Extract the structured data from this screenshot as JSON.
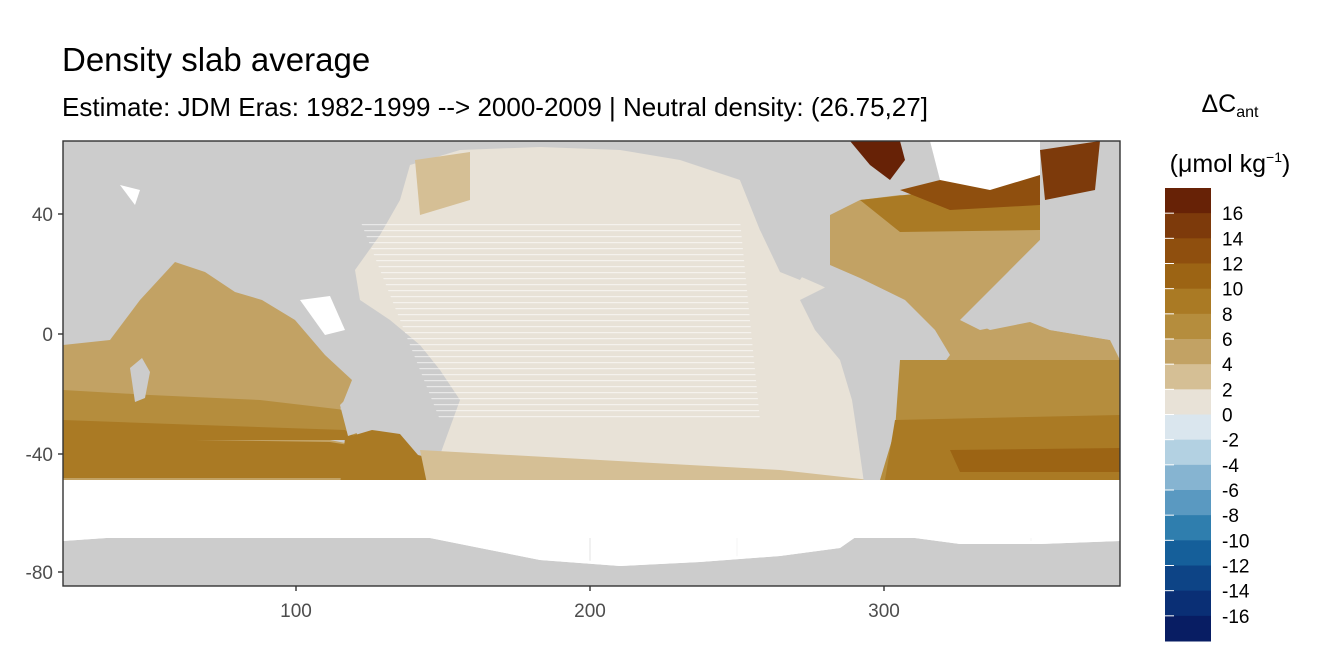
{
  "title": "Density slab average",
  "subtitle": "Estimate: JDM Eras: 1982-1999 --> 2000-2009 | Neutral density: (26.75,27]",
  "legend": {
    "title_symbol": "ΔC",
    "title_subscript": "ant",
    "unit_prefix": "(μmol kg",
    "unit_superscript": "−1",
    "unit_suffix": ")",
    "breaks": [
      "16",
      "14",
      "12",
      "10",
      "8",
      "6",
      "4",
      "2",
      "0",
      "-2",
      "-4",
      "-6",
      "-8",
      "-10",
      "-12",
      "-14",
      "-16"
    ],
    "colors": [
      "#672206",
      "#7d3a0b",
      "#8f4f0e",
      "#9c6414",
      "#aa7a24",
      "#b58d3d",
      "#c2a264",
      "#d5bf95",
      "#e8e2d7",
      "#dae6ee",
      "#b3d1e2",
      "#86b4d1",
      "#5a99c1",
      "#2f7eae",
      "#155f9a",
      "#0d4486",
      "#0a2f75",
      "#081d63"
    ]
  },
  "chart_data": {
    "type": "heatmap",
    "xlim": [
      20,
      380
    ],
    "ylim": [
      -85,
      65
    ],
    "x_ticks": [
      "100",
      "200",
      "300"
    ],
    "y_ticks": [
      "40",
      "0",
      "-40",
      "-80"
    ],
    "grid": true,
    "legend_position": "right",
    "colors": {
      "land": "#cccccc",
      "panel": "#ffffff",
      "no_data": "#ffffff"
    }
  }
}
